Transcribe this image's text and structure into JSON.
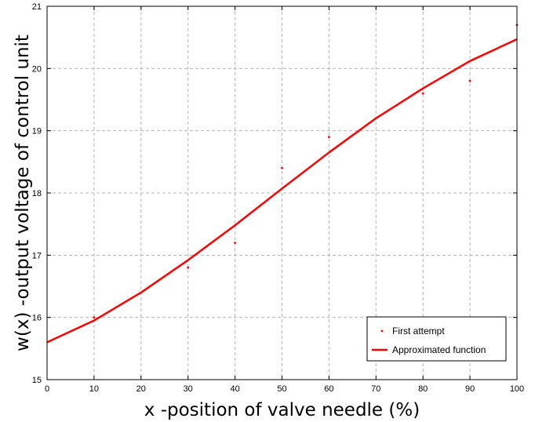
{
  "chart_data": {
    "type": "line",
    "xlabel": "x -position of valve needle (%)",
    "ylabel": "w(x) -output voltage of control unit",
    "xlim": [
      0,
      100
    ],
    "ylim": [
      15,
      21
    ],
    "x_ticks": [
      "0",
      "10",
      "20",
      "30",
      "40",
      "50",
      "60",
      "70",
      "80",
      "90",
      "100"
    ],
    "y_ticks": [
      "15",
      "16",
      "17",
      "18",
      "19",
      "20",
      "21"
    ],
    "grid": true,
    "legend_position": "bottom-right",
    "colors": {
      "series": "#ff0000",
      "grid": "#b4b4b4",
      "axes": "#000000"
    },
    "series": [
      {
        "name": "First attempt",
        "style": "points",
        "x": [
          10,
          30,
          40,
          50,
          60,
          80,
          90,
          100
        ],
        "y": [
          16.0,
          16.8,
          17.2,
          18.4,
          18.9,
          19.6,
          19.8,
          20.7
        ]
      },
      {
        "name": "Approximated function",
        "style": "line",
        "x": [
          0,
          10,
          20,
          30,
          40,
          50,
          60,
          70,
          80,
          90,
          100
        ],
        "y": [
          15.6,
          15.95,
          16.4,
          16.92,
          17.48,
          18.07,
          18.65,
          19.2,
          19.68,
          20.12,
          20.47
        ]
      }
    ]
  }
}
